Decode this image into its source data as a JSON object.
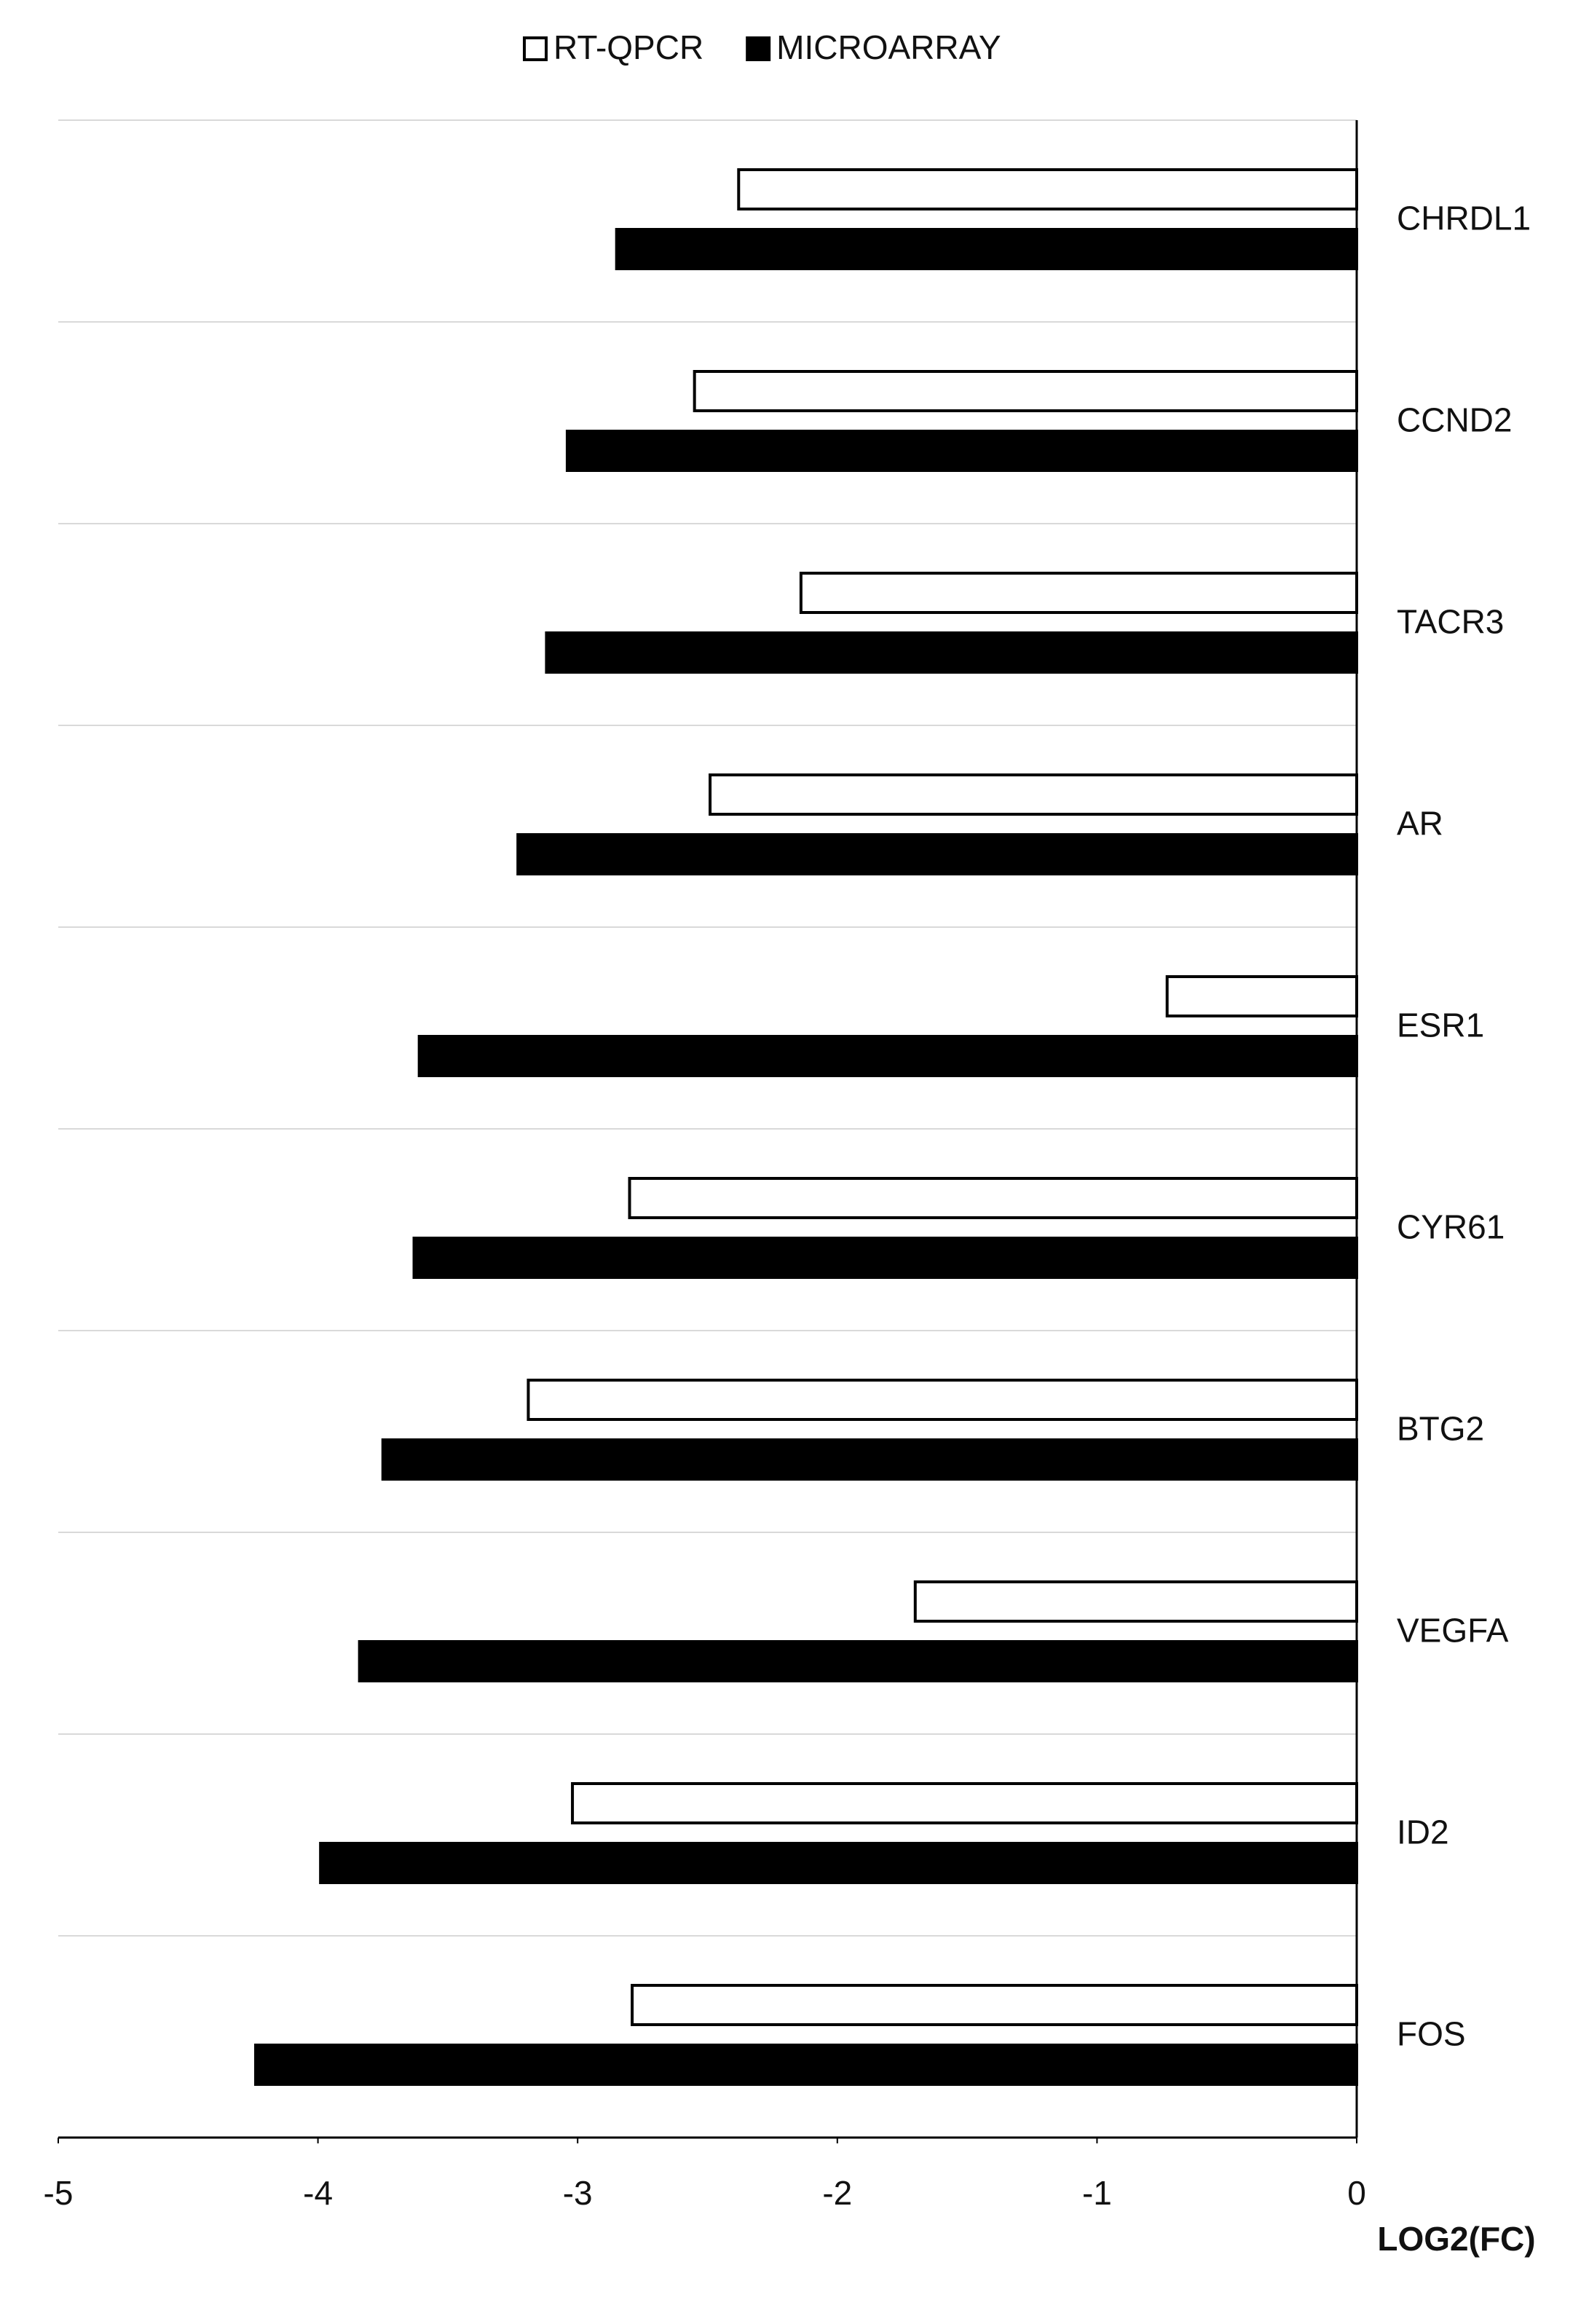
{
  "chart_data": {
    "type": "bar",
    "orientation": "horizontal",
    "x_label": "LOG2(FC)",
    "categories": [
      "CHRDL1",
      "CCND2",
      "TACR3",
      "AR",
      "ESR1",
      "CYR61",
      "BTG2",
      "VEGFA",
      "ID2",
      "FOS"
    ],
    "series": [
      {
        "name": "RT-QPCR",
        "color": "#ffffff",
        "values": [
          -2.38,
          -2.55,
          -2.14,
          -2.49,
          -0.73,
          -2.8,
          -3.19,
          -1.7,
          -3.02,
          -2.79
        ]
      },
      {
        "name": "MICROARRAY",
        "color": "#000000",
        "values": [
          -2.85,
          -3.04,
          -3.12,
          -3.23,
          -3.61,
          -3.63,
          -3.75,
          -3.84,
          -3.99,
          -4.24
        ]
      }
    ],
    "xlim": [
      -5,
      0
    ],
    "xticks": [
      -5,
      -4,
      -3,
      -2,
      -1,
      0
    ],
    "grid": true,
    "legend": "top"
  }
}
